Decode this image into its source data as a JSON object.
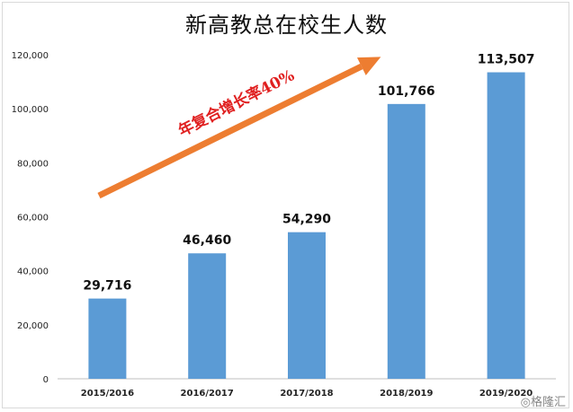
{
  "chart_data": {
    "type": "bar",
    "title": "新高教总在校生人数",
    "categories": [
      "2015/2016",
      "2016/2017",
      "2017/2018",
      "2018/2019",
      "2019/2020"
    ],
    "values": [
      29716,
      46460,
      54290,
      101766,
      113507
    ],
    "value_labels": [
      "29,716",
      "46,460",
      "54,290",
      "101,766",
      "113,507"
    ],
    "yticks": [
      "0",
      "20,000",
      "40,000",
      "60,000",
      "80,000",
      "100,000",
      "120,000"
    ],
    "ylim": [
      0,
      120000
    ],
    "grid": false,
    "bar_color": "#5b9bd5",
    "annotation": {
      "text": "年复合增长率40%",
      "text_color": "#e02020",
      "arrow_color": "#ed7d31"
    }
  },
  "watermark": "◎格隆汇"
}
